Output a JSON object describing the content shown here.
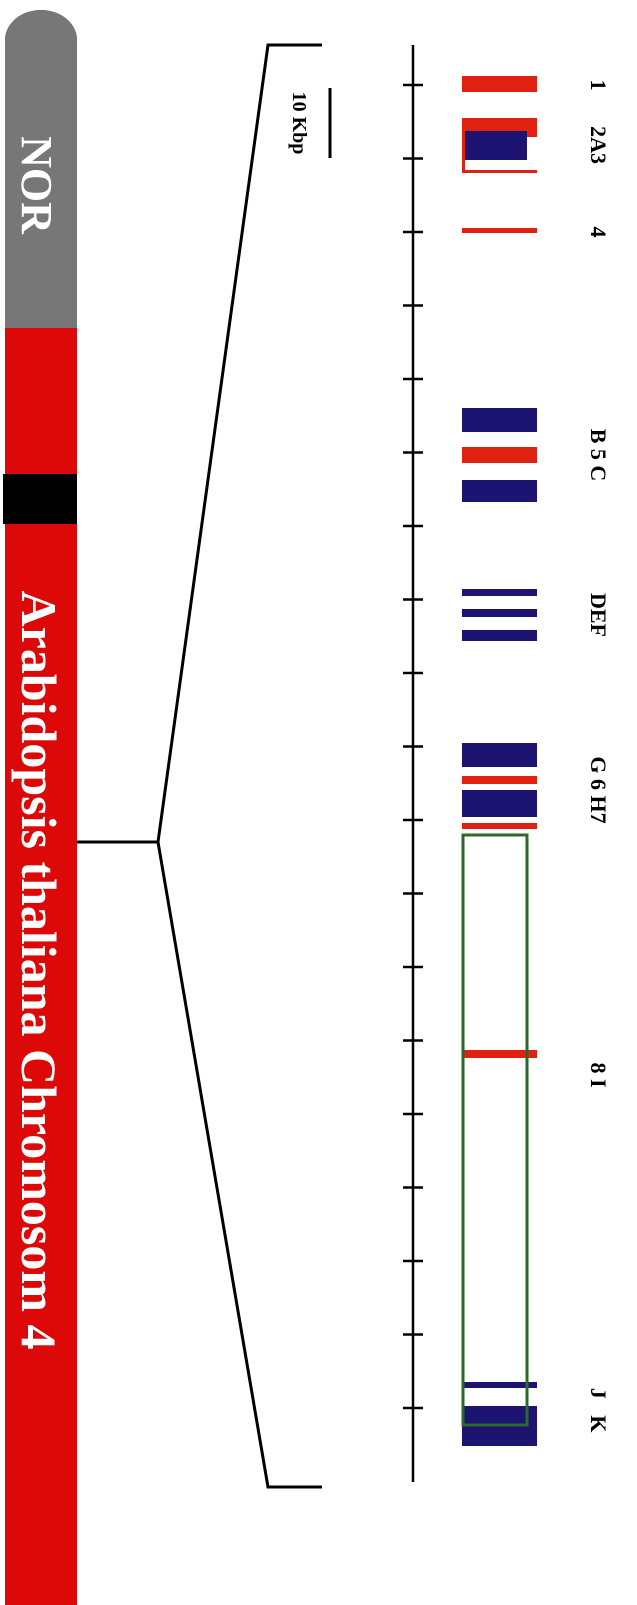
{
  "chromosome": {
    "title": "Arabidopsis thaliana Chromosom 4",
    "nor_label": "NOR"
  },
  "scale": {
    "label": "10 Kbp"
  },
  "gene_labels": [
    "1",
    "2A3",
    "4",
    "B 5 C",
    "DEF",
    "G 6 H7",
    "8 I",
    "J   K"
  ]
}
